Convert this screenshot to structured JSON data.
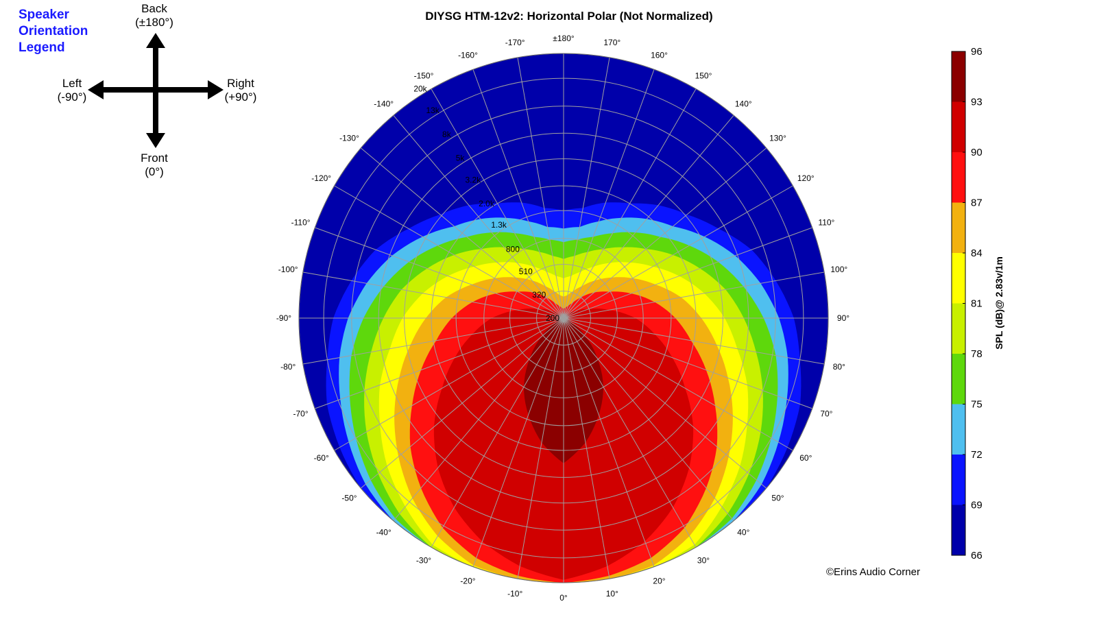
{
  "orientation_legend": {
    "title_lines": [
      "Speaker",
      "Orientation",
      "Legend"
    ],
    "back": "Back",
    "back_angle": "(±180°)",
    "left": "Left",
    "left_angle": "(-90°)",
    "right": "Right",
    "right_angle": "(+90°)",
    "front": "Front",
    "front_angle": "(0°)"
  },
  "credit": "©Erins Audio Corner",
  "chart_data": {
    "type": "heatmap",
    "subtype": "polar",
    "title": "DIYSG HTM-12v2: Horizontal Polar (Not Normalized)",
    "angle_ticks": [
      {
        "deg": 0,
        "label": "0°"
      },
      {
        "deg": 10,
        "label": "10°"
      },
      {
        "deg": 20,
        "label": "20°"
      },
      {
        "deg": 30,
        "label": "30°"
      },
      {
        "deg": 40,
        "label": "40°"
      },
      {
        "deg": 50,
        "label": "50°"
      },
      {
        "deg": 60,
        "label": "60°"
      },
      {
        "deg": 70,
        "label": "70°"
      },
      {
        "deg": 80,
        "label": "80°"
      },
      {
        "deg": 90,
        "label": "90°"
      },
      {
        "deg": 100,
        "label": "100°"
      },
      {
        "deg": 110,
        "label": "110°"
      },
      {
        "deg": 120,
        "label": "120°"
      },
      {
        "deg": 130,
        "label": "130°"
      },
      {
        "deg": 140,
        "label": "140°"
      },
      {
        "deg": 150,
        "label": "150°"
      },
      {
        "deg": 160,
        "label": "160°"
      },
      {
        "deg": 170,
        "label": "170°"
      },
      {
        "deg": 180,
        "label": "±180°"
      },
      {
        "deg": -10,
        "label": "-10°"
      },
      {
        "deg": -20,
        "label": "-20°"
      },
      {
        "deg": -30,
        "label": "-30°"
      },
      {
        "deg": -40,
        "label": "-40°"
      },
      {
        "deg": -50,
        "label": "-50°"
      },
      {
        "deg": -60,
        "label": "-60°"
      },
      {
        "deg": -70,
        "label": "-70°"
      },
      {
        "deg": -80,
        "label": "-80°"
      },
      {
        "deg": -90,
        "label": "-90°"
      },
      {
        "deg": -100,
        "label": "-100°"
      },
      {
        "deg": -110,
        "label": "-110°"
      },
      {
        "deg": -120,
        "label": "-120°"
      },
      {
        "deg": -130,
        "label": "-130°"
      },
      {
        "deg": -140,
        "label": "-140°"
      },
      {
        "deg": -150,
        "label": "-150°"
      },
      {
        "deg": -160,
        "label": "-160°"
      },
      {
        "deg": -170,
        "label": "-170°"
      }
    ],
    "radial_axis": {
      "scale": "log",
      "range_hz": [
        200,
        20000
      ],
      "ticks": [
        {
          "hz": 200,
          "label": "200"
        },
        {
          "hz": 320,
          "label": "320"
        },
        {
          "hz": 510,
          "label": "510"
        },
        {
          "hz": 800,
          "label": "800"
        },
        {
          "hz": 1300,
          "label": "1.3k"
        },
        {
          "hz": 2000,
          "label": "2.0k"
        },
        {
          "hz": 3200,
          "label": "3.2k"
        },
        {
          "hz": 5000,
          "label": "5k"
        },
        {
          "hz": 8000,
          "label": "8k"
        },
        {
          "hz": 13000,
          "label": "13k"
        },
        {
          "hz": 20000,
          "label": "20k"
        }
      ]
    },
    "colorbar": {
      "label": "SPL (dB)@ 2.83v/1m",
      "range": [
        66,
        96
      ],
      "ticks": [
        "66",
        "69",
        "72",
        "75",
        "78",
        "81",
        "84",
        "87",
        "90",
        "93",
        "96"
      ],
      "bands": [
        {
          "from": 66,
          "to": 69,
          "color": "#0000aa"
        },
        {
          "from": 69,
          "to": 72,
          "color": "#0a14ff"
        },
        {
          "from": 72,
          "to": 75,
          "color": "#4fbfef"
        },
        {
          "from": 75,
          "to": 78,
          "color": "#5ed80c"
        },
        {
          "from": 78,
          "to": 81,
          "color": "#c8f000"
        },
        {
          "from": 81,
          "to": 84,
          "color": "#ffff00"
        },
        {
          "from": 84,
          "to": 87,
          "color": "#f2b110"
        },
        {
          "from": 87,
          "to": 90,
          "color": "#ff1010"
        },
        {
          "from": 90,
          "to": 93,
          "color": "#d00000"
        },
        {
          "from": 93,
          "to": 96,
          "color": "#8b0000"
        }
      ]
    },
    "spl_contours_by_angle": {
      "angles": [
        0,
        10,
        20,
        30,
        40,
        50,
        60,
        70,
        80,
        90,
        100,
        110,
        120,
        130,
        140,
        150,
        160,
        170,
        180
      ],
      "note_values": "for each SPL level, highest frequency (Hz) along each angle at which the SPL still reaches that level; symmetric left/right",
      "levels": [
        {
          "db": 69,
          "max_hz": [
            20000,
            20000,
            20000,
            20000,
            20000,
            20000,
            18000,
            16000,
            13000,
            11000,
            8500,
            6500,
            4500,
            3300,
            2600,
            2000,
            1700,
            1400,
            1300
          ]
        },
        {
          "db": 72,
          "max_hz": [
            20000,
            20000,
            20000,
            20000,
            20000,
            18000,
            15000,
            12500,
            10500,
            8500,
            6500,
            4800,
            3400,
            2400,
            1900,
            1500,
            1200,
            1000,
            950
          ]
        },
        {
          "db": 75,
          "max_hz": [
            20000,
            20000,
            20000,
            20000,
            19000,
            16000,
            13000,
            10500,
            8500,
            6500,
            4800,
            3500,
            2500,
            1800,
            1400,
            1100,
            900,
            800,
            750
          ]
        },
        {
          "db": 78,
          "max_hz": [
            20000,
            20000,
            20000,
            20000,
            17000,
            13500,
            10500,
            8000,
            6000,
            4600,
            3500,
            2500,
            1800,
            1300,
            1000,
            800,
            680,
            600,
            560
          ]
        },
        {
          "db": 81,
          "max_hz": [
            20000,
            20000,
            20000,
            19000,
            14500,
            11000,
            8000,
            6000,
            4300,
            3300,
            2400,
            1700,
            1200,
            900,
            700,
            560,
            470,
            420,
            400
          ]
        },
        {
          "db": 84,
          "max_hz": [
            20000,
            20000,
            19500,
            16000,
            12000,
            8500,
            6000,
            4200,
            3000,
            2200,
            1600,
            1100,
            800,
            600,
            470,
            380,
            330,
            300,
            290
          ]
        },
        {
          "db": 87,
          "max_hz": [
            20000,
            19000,
            17000,
            13500,
            9500,
            6500,
            4200,
            2800,
            1900,
            1400,
            1000,
            700,
            500,
            400,
            320,
            270,
            250,
            240,
            235
          ]
        },
        {
          "db": 90,
          "max_hz": [
            19000,
            16000,
            12500,
            9000,
            6000,
            3800,
            2300,
            1500,
            1000,
            700,
            450,
            320,
            260,
            230,
            215,
            208,
            204,
            202,
            201
          ]
        },
        {
          "db": 93,
          "max_hz": [
            2500,
            1800,
            1200,
            800,
            500,
            330,
            240,
            210,
            203,
            201,
            200,
            200,
            200,
            200,
            200,
            200,
            200,
            200,
            200
          ]
        }
      ]
    }
  }
}
